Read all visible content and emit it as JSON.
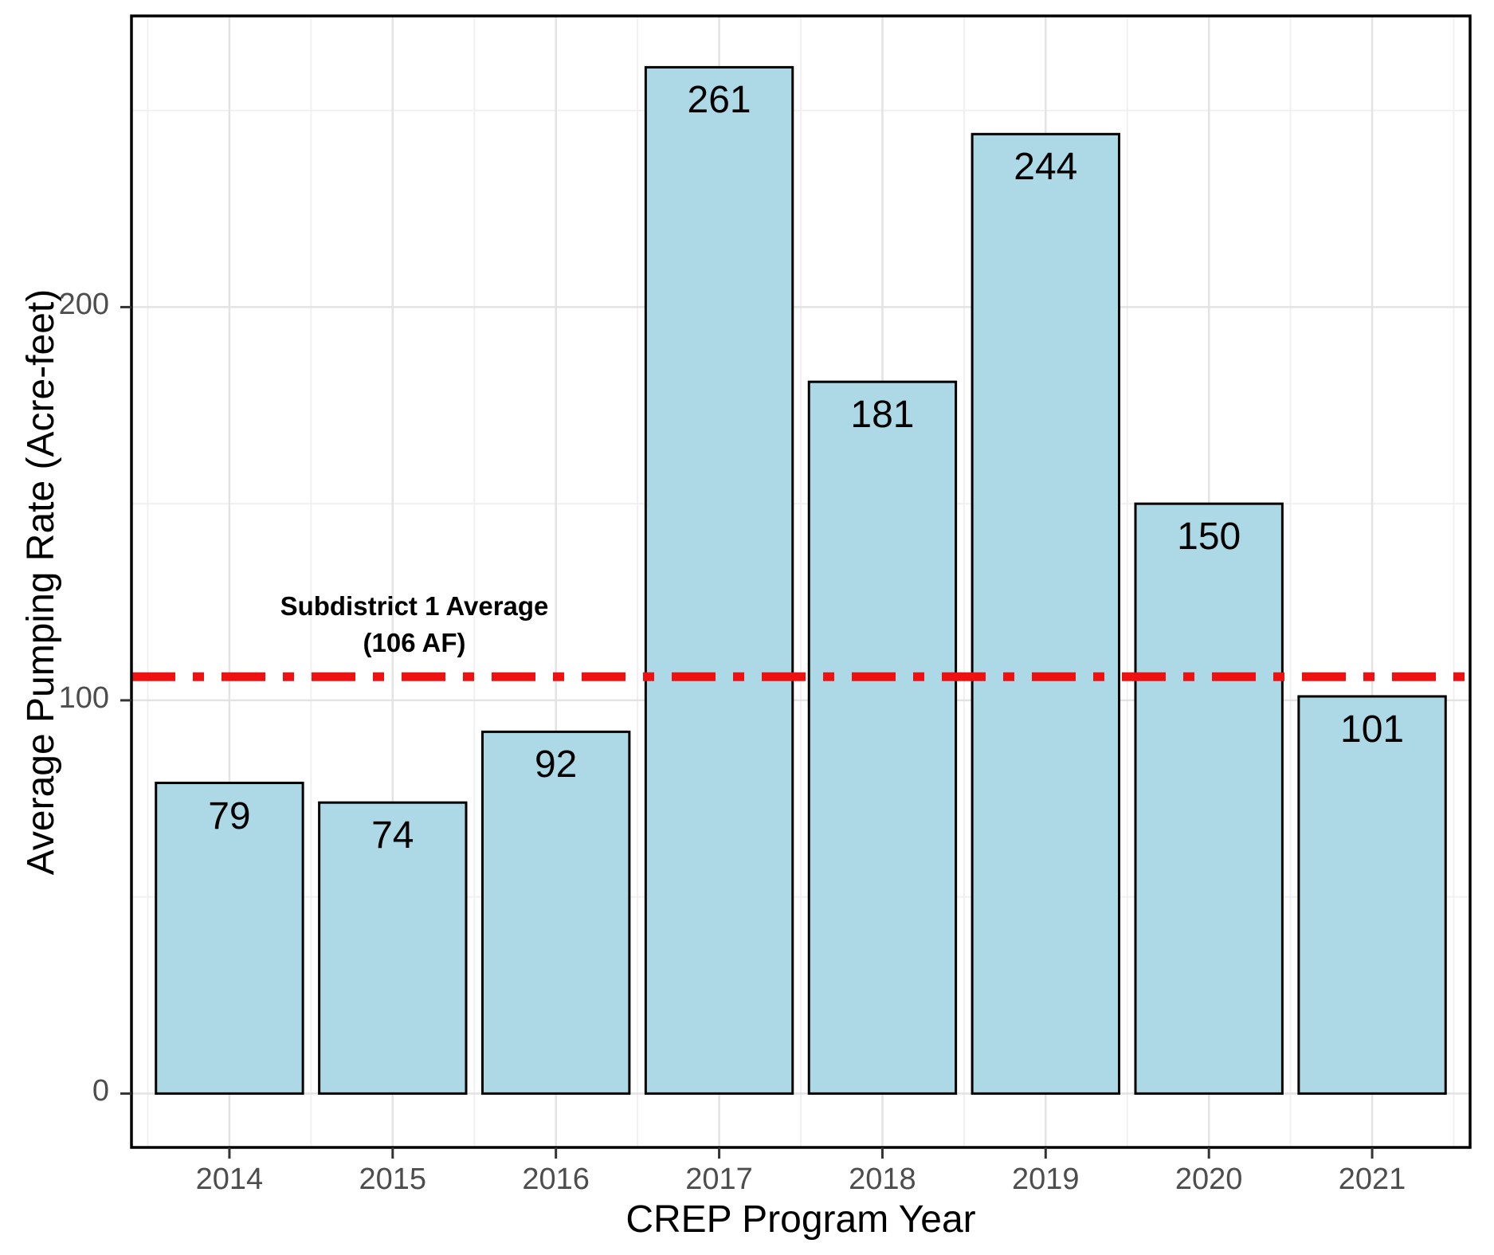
{
  "chart_data": {
    "type": "bar",
    "title": "",
    "xlabel": "CREP Program Year",
    "ylabel": "Average Pumping Rate (Acre-feet)",
    "categories": [
      "2014",
      "2015",
      "2016",
      "2017",
      "2018",
      "2019",
      "2020",
      "2021"
    ],
    "values": [
      79,
      74,
      92,
      261,
      181,
      244,
      150,
      101
    ],
    "ylim": [
      0,
      275
    ],
    "yticks": [
      0,
      100,
      200
    ],
    "yminor": [
      50,
      150,
      250
    ],
    "grid": "on",
    "legend": "none",
    "bar_fill": "#add8e6",
    "bar_stroke": "#000000",
    "reference_line": {
      "value": 106,
      "color": "#ee1111",
      "style": "dot-dash",
      "label_line1": "Subdistrict 1 Average",
      "label_line2": "(106 AF)"
    }
  }
}
